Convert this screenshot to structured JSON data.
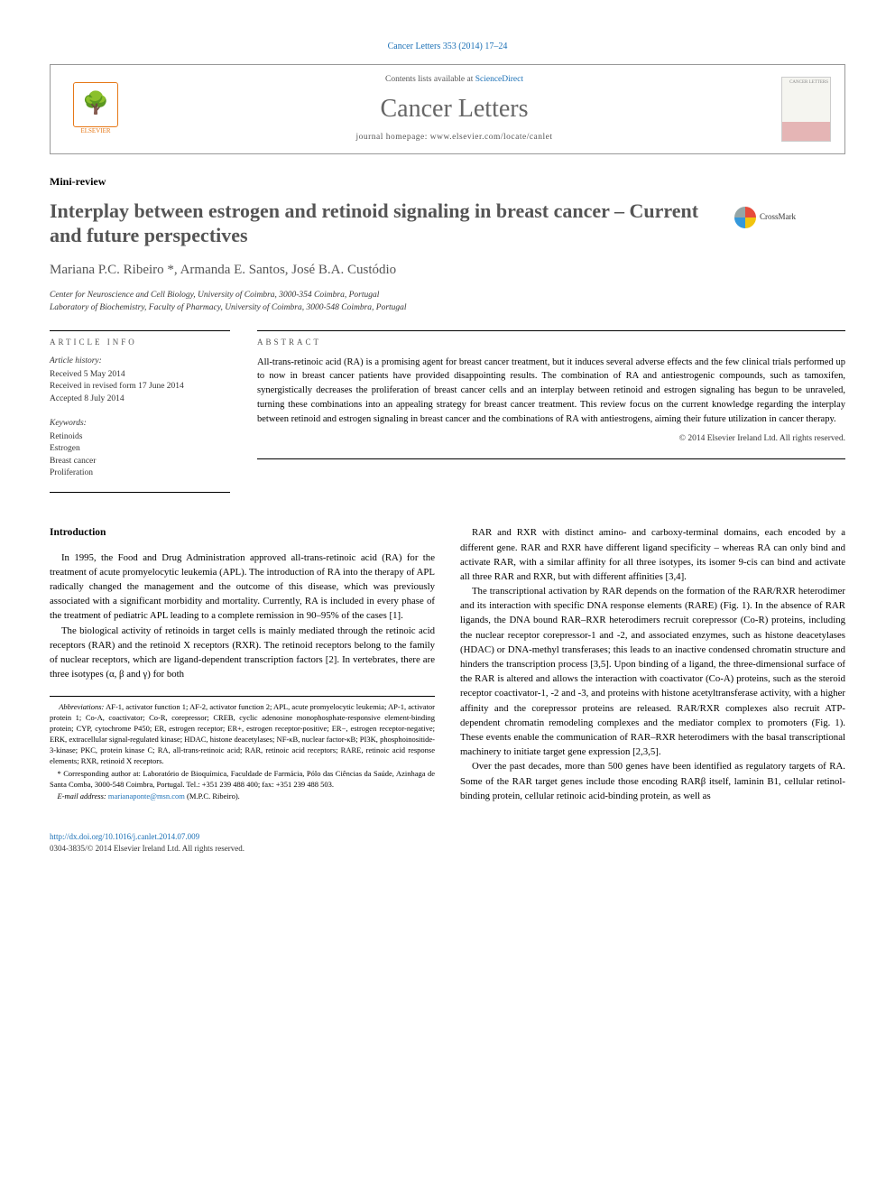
{
  "journal_ref": "Cancer Letters 353 (2014) 17–24",
  "header": {
    "contents_prefix": "Contents lists available at ",
    "contents_link": "ScienceDirect",
    "journal_name": "Cancer Letters",
    "homepage_prefix": "journal homepage: ",
    "homepage_url": "www.elsevier.com/locate/canlet",
    "publisher": "ELSEVIER",
    "cover_label": "CANCER LETTERS"
  },
  "article_type": "Mini-review",
  "title": "Interplay between estrogen and retinoid signaling in breast cancer – Current and future perspectives",
  "crossmark": "CrossMark",
  "authors": "Mariana P.C. Ribeiro *, Armanda E. Santos, José B.A. Custódio",
  "affiliations": [
    "Center for Neuroscience and Cell Biology, University of Coimbra, 3000-354 Coimbra, Portugal",
    "Laboratory of Biochemistry, Faculty of Pharmacy, University of Coimbra, 3000-548 Coimbra, Portugal"
  ],
  "info": {
    "section_label": "ARTICLE INFO",
    "history_label": "Article history:",
    "received": "Received 5 May 2014",
    "revised": "Received in revised form 17 June 2014",
    "accepted": "Accepted 8 July 2014",
    "keywords_label": "Keywords:",
    "keywords": [
      "Retinoids",
      "Estrogen",
      "Breast cancer",
      "Proliferation"
    ]
  },
  "abstract": {
    "section_label": "ABSTRACT",
    "text": "All-trans-retinoic acid (RA) is a promising agent for breast cancer treatment, but it induces several adverse effects and the few clinical trials performed up to now in breast cancer patients have provided disappointing results. The combination of RA and antiestrogenic compounds, such as tamoxifen, synergistically decreases the proliferation of breast cancer cells and an interplay between retinoid and estrogen signaling has begun to be unraveled, turning these combinations into an appealing strategy for breast cancer treatment. This review focus on the current knowledge regarding the interplay between retinoid and estrogen signaling in breast cancer and the combinations of RA with antiestrogens, aiming their future utilization in cancer therapy.",
    "copyright": "© 2014 Elsevier Ireland Ltd. All rights reserved."
  },
  "body": {
    "intro_heading": "Introduction",
    "left_paras": [
      "In 1995, the Food and Drug Administration approved all-trans-retinoic acid (RA) for the treatment of acute promyelocytic leukemia (APL). The introduction of RA into the therapy of APL radically changed the management and the outcome of this disease, which was previously associated with a significant morbidity and mortality. Currently, RA is included in every phase of the treatment of pediatric APL leading to a complete remission in 90–95% of the cases [1].",
      "The biological activity of retinoids in target cells is mainly mediated through the retinoic acid receptors (RAR) and the retinoid X receptors (RXR). The retinoid receptors belong to the family of nuclear receptors, which are ligand-dependent transcription factors [2]. In vertebrates, there are three isotypes (α, β and γ) for both"
    ],
    "right_paras": [
      "RAR and RXR with distinct amino- and carboxy-terminal domains, each encoded by a different gene. RAR and RXR have different ligand specificity – whereas RA can only bind and activate RAR, with a similar affinity for all three isotypes, its isomer 9-cis can bind and activate all three RAR and RXR, but with different affinities [3,4].",
      "The transcriptional activation by RAR depends on the formation of the RAR/RXR heterodimer and its interaction with specific DNA response elements (RARE) (Fig. 1). In the absence of RAR ligands, the DNA bound RAR–RXR heterodimers recruit corepressor (Co-R) proteins, including the nuclear receptor corepressor-1 and -2, and associated enzymes, such as histone deacetylases (HDAC) or DNA-methyl transferases; this leads to an inactive condensed chromatin structure and hinders the transcription process [3,5]. Upon binding of a ligand, the three-dimensional surface of the RAR is altered and allows the interaction with coactivator (Co-A) proteins, such as the steroid receptor coactivator-1, -2 and -3, and proteins with histone acetyltransferase activity, with a higher affinity and the corepressor proteins are released. RAR/RXR complexes also recruit ATP-dependent chromatin remodeling complexes and the mediator complex to promoters (Fig. 1). These events enable the communication of RAR–RXR heterodimers with the basal transcriptional machinery to initiate target gene expression [2,3,5].",
      "Over the past decades, more than 500 genes have been identified as regulatory targets of RA. Some of the RAR target genes include those encoding RARβ itself, laminin B1, cellular retinol-binding protein, cellular retinoic acid-binding protein, as well as"
    ]
  },
  "footnotes": {
    "abbrev_label": "Abbreviations:",
    "abbrev_text": " AF-1, activator function 1; AF-2, activator function 2; APL, acute promyelocytic leukemia; AP-1, activator protein 1; Co-A, coactivator; Co-R, corepressor; CREB, cyclic adenosine monophosphate-responsive element-binding protein; CYP, cytochrome P450; ER, estrogen receptor; ER+, estrogen receptor-positive; ER−, estrogen receptor-negative; ERK, extracellular signal-regulated kinase; HDAC, histone deacetylases; NF-κB, nuclear factor-κB; PI3K, phosphoinositide-3-kinase; PKC, protein kinase C; RA, all-trans-retinoic acid; RAR, retinoic acid receptors; RARE, retinoic acid response elements; RXR, retinoid X receptors.",
    "corresponding": "* Corresponding author at: Laboratório de Bioquímica, Faculdade de Farmácia, Pólo das Ciências da Saúde, Azinhaga de Santa Comba, 3000-548 Coimbra, Portugal. Tel.: +351 239 488 400; fax: +351 239 488 503.",
    "email_label": "E-mail address:",
    "email": " marianaponte@msn.com",
    "email_suffix": " (M.P.C. Ribeiro)."
  },
  "footer": {
    "doi": "http://dx.doi.org/10.1016/j.canlet.2014.07.009",
    "issn": "0304-3835/© 2014 Elsevier Ireland Ltd. All rights reserved."
  }
}
